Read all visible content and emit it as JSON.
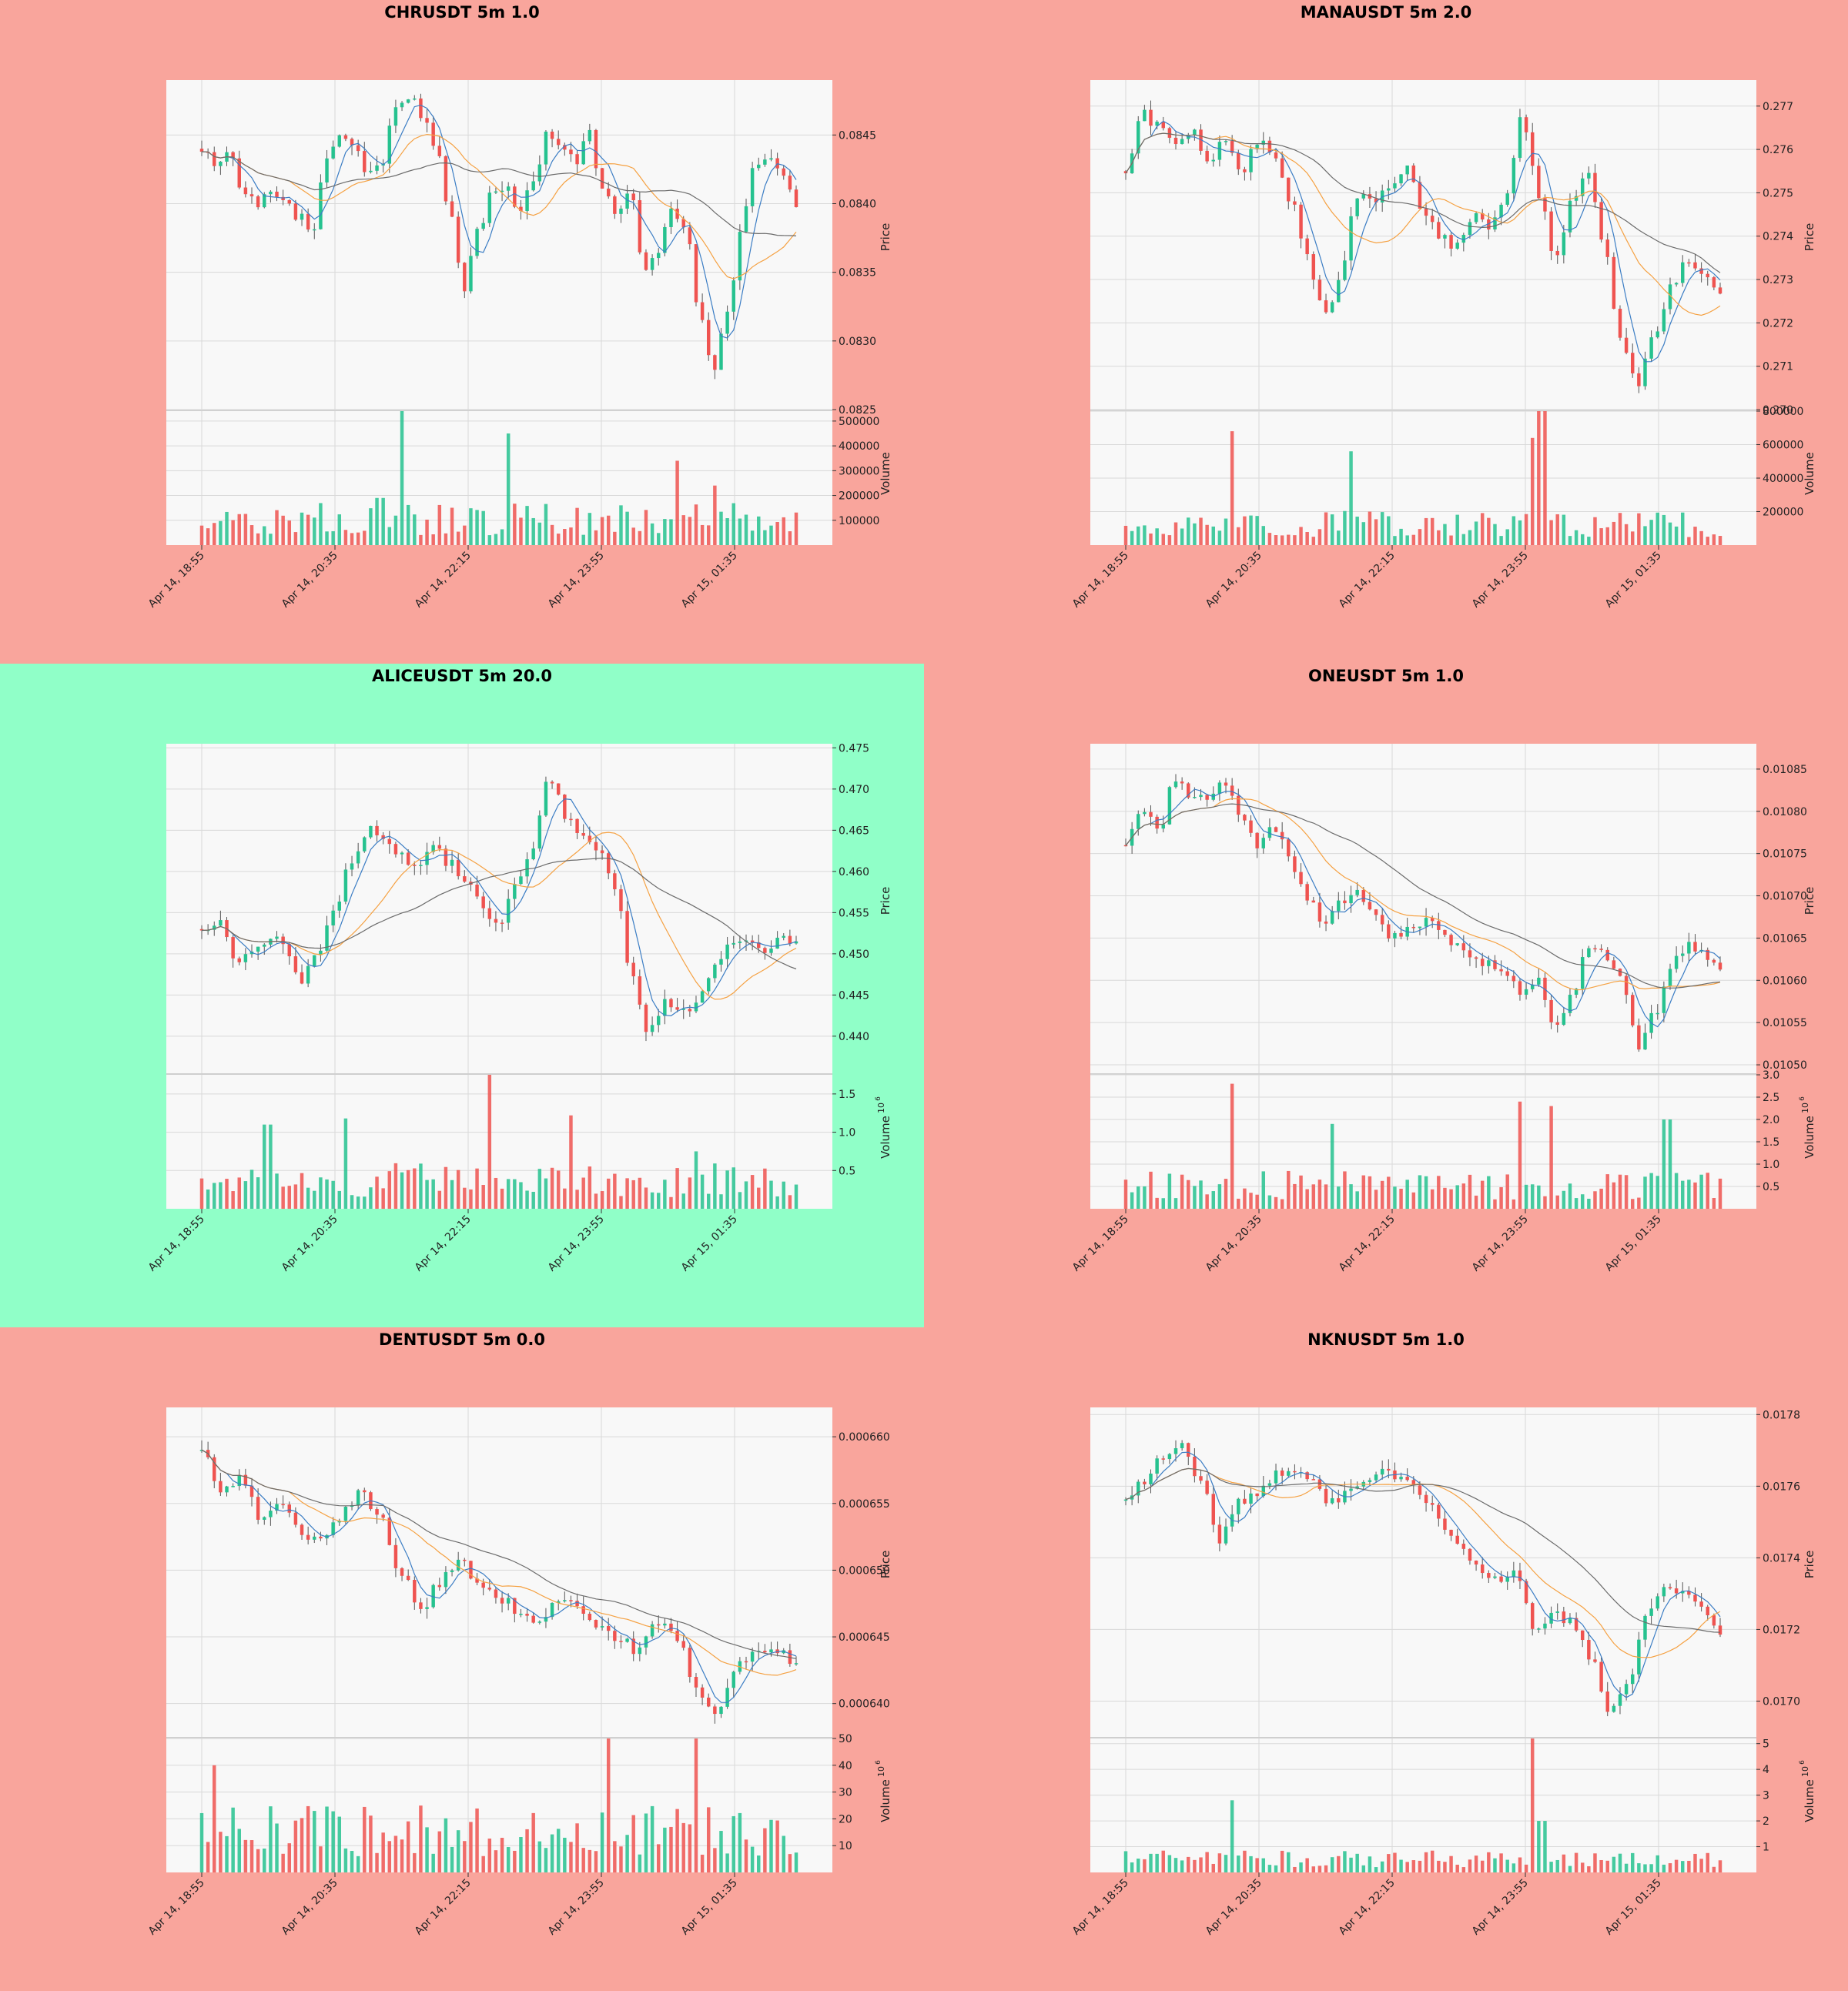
{
  "colors": {
    "up": "#26c28f",
    "down": "#ef5350",
    "ma_short": "#3b7dc4",
    "ma_mid": "#f5a142",
    "ma_long": "#6b6b6b",
    "plot_bg": "#f8f8f8",
    "grid": "#d9d9d9",
    "panel_bg_default": "#f9a59c",
    "panel_bg_highlight": "#90ffc8"
  },
  "chart_data": [
    {
      "type": "candlestick",
      "title": "CHRUSDT 5m 1.0",
      "highlight": false,
      "x_ticks": [
        "Apr 14, 18:55",
        "Apr 14, 20:35",
        "Apr 14, 22:15",
        "Apr 14, 23:55",
        "Apr 15, 01:35"
      ],
      "price_ylabel": "Price",
      "price_ylim": [
        0.0825,
        0.0849
      ],
      "price_ticks": [
        0.0825,
        0.083,
        0.0835,
        0.084,
        0.0845
      ],
      "price_tick_labels": [
        "0.0825",
        "0.0830",
        "0.0835",
        "0.0840",
        "0.0845"
      ],
      "volume_ylabel": "Volume",
      "volume_exp": "",
      "volume_ylim": [
        0,
        540000
      ],
      "volume_ticks": [
        100000,
        200000,
        300000,
        400000,
        500000
      ],
      "volume_tick_labels": [
        "100000",
        "200000",
        "300000",
        "400000",
        "500000"
      ],
      "path": [
        0.0844,
        0.0843,
        0.0844,
        0.0841,
        0.084,
        0.0841,
        0.084,
        0.0839,
        0.0838,
        0.0843,
        0.0845,
        0.0844,
        0.0842,
        0.0843,
        0.0847,
        0.0848,
        0.0846,
        0.0844,
        0.0839,
        0.0834,
        0.0838,
        0.0841,
        0.0841,
        0.0839,
        0.0842,
        0.0845,
        0.0844,
        0.0843,
        0.0845,
        0.0841,
        0.0839,
        0.0841,
        0.0835,
        0.0836,
        0.084,
        0.0838,
        0.0832,
        0.0828,
        0.0832,
        0.0838,
        0.0843,
        0.0843,
        0.0842,
        0.084
      ],
      "volume_peaks": [
        [
          0.3,
          190000
        ],
        [
          0.34,
          540000
        ],
        [
          0.52,
          450000
        ],
        [
          0.8,
          340000
        ],
        [
          0.86,
          240000
        ]
      ],
      "volume_base": 100000
    },
    {
      "type": "candlestick",
      "title": "MANAUSDT 5m 2.0",
      "highlight": false,
      "x_ticks": [
        "Apr 14, 18:55",
        "Apr 14, 20:35",
        "Apr 14, 22:15",
        "Apr 14, 23:55",
        "Apr 15, 01:35"
      ],
      "price_ylabel": "Price",
      "price_ylim": [
        0.27,
        0.2776
      ],
      "price_ticks": [
        0.27,
        0.271,
        0.272,
        0.273,
        0.274,
        0.275,
        0.276,
        0.277
      ],
      "price_tick_labels": [
        "0.270",
        "0.271",
        "0.272",
        "0.273",
        "0.274",
        "0.275",
        "0.276",
        "0.277"
      ],
      "volume_ylabel": "Volume",
      "volume_exp": "",
      "volume_ylim": [
        0,
        800000
      ],
      "volume_ticks": [
        200000,
        400000,
        600000,
        800000
      ],
      "volume_tick_labels": [
        "200000",
        "400000",
        "600000",
        "800000"
      ],
      "path": [
        0.2755,
        0.2768,
        0.2765,
        0.2762,
        0.2764,
        0.2758,
        0.2762,
        0.2755,
        0.2762,
        0.2758,
        0.2748,
        0.2735,
        0.2722,
        0.273,
        0.275,
        0.2748,
        0.2752,
        0.2756,
        0.2745,
        0.274,
        0.2738,
        0.2745,
        0.2742,
        0.2748,
        0.2768,
        0.275,
        0.2735,
        0.2748,
        0.2755,
        0.2738,
        0.2715,
        0.2705,
        0.2718,
        0.2728,
        0.2735,
        0.2732,
        0.2728
      ],
      "volume_peaks": [
        [
          0.18,
          680000
        ],
        [
          0.38,
          560000
        ],
        [
          0.68,
          640000
        ],
        [
          0.7,
          800000
        ]
      ],
      "volume_base": 120000
    },
    {
      "type": "candlestick",
      "title": "ALICEUSDT 5m 20.0",
      "highlight": true,
      "x_ticks": [
        "Apr 14, 18:55",
        "Apr 14, 20:35",
        "Apr 14, 22:15",
        "Apr 14, 23:55",
        "Apr 15, 01:35"
      ],
      "price_ylabel": "Price",
      "price_ylim": [
        0.4355,
        0.4755
      ],
      "price_ticks": [
        0.44,
        0.445,
        0.45,
        0.455,
        0.46,
        0.465,
        0.47,
        0.475
      ],
      "price_tick_labels": [
        "0.440",
        "0.445",
        "0.450",
        "0.455",
        "0.460",
        "0.465",
        "0.470",
        "0.475"
      ],
      "volume_ylabel": "Volume",
      "volume_exp": "6",
      "volume_ylim": [
        0,
        1.75
      ],
      "volume_ticks": [
        0.5,
        1.0,
        1.5
      ],
      "volume_tick_labels": [
        "0.5",
        "1.0",
        "1.5"
      ],
      "path": [
        0.453,
        0.454,
        0.449,
        0.45,
        0.452,
        0.451,
        0.447,
        0.45,
        0.455,
        0.461,
        0.465,
        0.464,
        0.462,
        0.461,
        0.463,
        0.461,
        0.459,
        0.456,
        0.453,
        0.458,
        0.463,
        0.472,
        0.467,
        0.465,
        0.463,
        0.458,
        0.448,
        0.44,
        0.444,
        0.443,
        0.444,
        0.448,
        0.452,
        0.451,
        0.45,
        0.452,
        0.451
      ],
      "volume_peaks": [
        [
          0.11,
          1.1
        ],
        [
          0.24,
          1.18
        ],
        [
          0.48,
          1.75
        ],
        [
          0.62,
          1.22
        ],
        [
          0.83,
          0.75
        ]
      ],
      "volume_base": 0.35
    },
    {
      "type": "candlestick",
      "title": "ONEUSDT 5m 1.0",
      "highlight": false,
      "x_ticks": [
        "Apr 14, 18:55",
        "Apr 14, 20:35",
        "Apr 14, 22:15",
        "Apr 14, 23:55",
        "Apr 15, 01:35"
      ],
      "price_ylabel": "Price",
      "price_ylim": [
        0.01049,
        0.01088
      ],
      "price_ticks": [
        0.0105,
        0.01055,
        0.0106,
        0.01065,
        0.0107,
        0.01075,
        0.0108,
        0.01085
      ],
      "price_tick_labels": [
        "0.01050",
        "0.01055",
        "0.01060",
        "0.01065",
        "0.01070",
        "0.01075",
        "0.01080",
        "0.01085"
      ],
      "volume_ylabel": "Volume",
      "volume_exp": "6",
      "volume_ylim": [
        0,
        3.0
      ],
      "volume_ticks": [
        0.5,
        1.0,
        1.5,
        2.0,
        2.5,
        3.0
      ],
      "volume_tick_labels": [
        "0.5",
        "1.0",
        "1.5",
        "2.0",
        "2.5",
        "3.0"
      ],
      "path": [
        0.01076,
        0.0108,
        0.01078,
        0.01084,
        0.01081,
        0.01082,
        0.01083,
        0.01079,
        0.01076,
        0.01078,
        0.01074,
        0.0107,
        0.01066,
        0.01069,
        0.01071,
        0.01068,
        0.01065,
        0.01066,
        0.01067,
        0.01066,
        0.01064,
        0.01063,
        0.01062,
        0.01061,
        0.01058,
        0.0106,
        0.01055,
        0.01058,
        0.01064,
        0.01063,
        0.01061,
        0.01052,
        0.01056,
        0.01062,
        0.01064,
        0.01063,
        0.01061
      ],
      "volume_peaks": [
        [
          0.18,
          2.8
        ],
        [
          0.35,
          1.9
        ],
        [
          0.66,
          2.4
        ],
        [
          0.72,
          2.3
        ],
        [
          0.91,
          2.0
        ]
      ],
      "volume_base": 0.5
    },
    {
      "type": "candlestick",
      "title": "DENTUSDT 5m 0.0",
      "highlight": false,
      "x_ticks": [
        "Apr 14, 18:55",
        "Apr 14, 20:35",
        "Apr 14, 22:15",
        "Apr 14, 23:55",
        "Apr 15, 01:35"
      ],
      "price_ylabel": "Price",
      "price_ylim": [
        0.0006375,
        0.0006622
      ],
      "price_ticks": [
        0.00064,
        0.000645,
        0.00065,
        0.000655,
        0.00066
      ],
      "price_tick_labels": [
        "0.000640",
        "0.000645",
        "0.000650",
        "0.000655",
        "0.000660"
      ],
      "volume_ylabel": "Volume",
      "volume_exp": "6",
      "volume_ylim": [
        0,
        50
      ],
      "volume_ticks": [
        10,
        20,
        30,
        40,
        50
      ],
      "volume_tick_labels": [
        "10",
        "20",
        "30",
        "40",
        "50"
      ],
      "path": [
        0.000659,
        0.000656,
        0.000657,
        0.000654,
        0.000655,
        0.000653,
        0.000652,
        0.000654,
        0.000656,
        0.000654,
        0.00065,
        0.000647,
        0.000649,
        0.000651,
        0.000649,
        0.000648,
        0.000647,
        0.000646,
        0.000648,
        0.000647,
        0.000646,
        0.000645,
        0.000644,
        0.000646,
        0.000645,
        0.000641,
        0.000639,
        0.000643,
        0.000644,
        0.000644,
        0.000643
      ],
      "volume_peaks": [
        [
          0.02,
          40
        ],
        [
          0.68,
          51
        ],
        [
          0.83,
          50
        ]
      ],
      "volume_base": 15
    },
    {
      "type": "candlestick",
      "title": "NKNUSDT 5m 1.0",
      "highlight": false,
      "x_ticks": [
        "Apr 14, 18:55",
        "Apr 14, 20:35",
        "Apr 14, 22:15",
        "Apr 14, 23:55",
        "Apr 15, 01:35"
      ],
      "price_ylabel": "Price",
      "price_ylim": [
        0.0169,
        0.01782
      ],
      "price_ticks": [
        0.017,
        0.0172,
        0.0174,
        0.0176,
        0.0178
      ],
      "price_tick_labels": [
        "0.0170",
        "0.0172",
        "0.0174",
        "0.0176",
        "0.0178"
      ],
      "volume_ylabel": "Volume",
      "volume_exp": "6",
      "volume_ylim": [
        0,
        5.2
      ],
      "volume_ticks": [
        1,
        2,
        3,
        4,
        5
      ],
      "volume_tick_labels": [
        "1",
        "2",
        "3",
        "4",
        "5"
      ],
      "path": [
        0.01756,
        0.01762,
        0.01768,
        0.01773,
        0.01762,
        0.01745,
        0.01755,
        0.01758,
        0.01763,
        0.01765,
        0.01762,
        0.01755,
        0.01758,
        0.01762,
        0.01764,
        0.01761,
        0.01757,
        0.0175,
        0.01742,
        0.01737,
        0.01734,
        0.01735,
        0.0172,
        0.01724,
        0.01722,
        0.01712,
        0.01698,
        0.01705,
        0.01725,
        0.01733,
        0.0173,
        0.01726,
        0.01719
      ],
      "volume_peaks": [
        [
          0.18,
          2.8
        ],
        [
          0.68,
          5.2
        ],
        [
          0.7,
          2.0
        ]
      ],
      "volume_base": 0.5
    }
  ]
}
